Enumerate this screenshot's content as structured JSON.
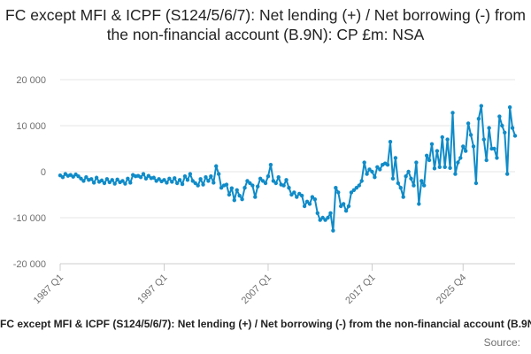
{
  "chart_data": {
    "type": "line",
    "title": "FC except MFI & ICPF (S124/5/6/7): Net lending (+) / Net borrowing (-) from the non-financial account (B.9N): CP £m: NSA",
    "xlabel": "",
    "ylabel": "",
    "ylim": [
      -20000,
      20000
    ],
    "yticks": [
      -20000,
      -10000,
      0,
      10000,
      20000
    ],
    "ytick_labels": [
      "-20 000",
      "-10 000",
      "0",
      "10 000",
      "20 000"
    ],
    "xticks": [
      "1987 Q1",
      "1997 Q1",
      "2007 Q1",
      "2017 Q1",
      "2025 Q4"
    ],
    "grid": true,
    "legend_placement": "bottom",
    "color": "#0f8bc8",
    "x_start": "1987 Q1",
    "x_end": "2025 Q4",
    "series": [
      {
        "name": "FC except MFI & ICPF (S124/5/6/7): Net lending (+) / Net borrowing (-) from the non-financial account (B.9N): CP £m: NSA",
        "values": [
          -800,
          -1200,
          -500,
          -900,
          -700,
          -1100,
          -600,
          -1000,
          -1500,
          -2000,
          -1200,
          -1800,
          -1600,
          -2400,
          -1300,
          -2200,
          -1900,
          -2500,
          -1600,
          -2300,
          -1800,
          -2600,
          -1700,
          -2300,
          -2000,
          -2600,
          -1500,
          -2400,
          -700,
          -1000,
          -900,
          -1200,
          -500,
          -1500,
          -900,
          -1400,
          -1300,
          -2000,
          -1600,
          -2100,
          -1800,
          -2400,
          -1500,
          -2200,
          -1400,
          -2500,
          -1800,
          -2700,
          -1000,
          -1800,
          -500,
          -2000,
          -2500,
          -3000,
          -1600,
          -2800,
          -1200,
          -2000,
          -1000,
          -2400,
          1200,
          -500,
          -3500,
          -3000,
          -2800,
          -5000,
          -3600,
          -6200,
          -4000,
          -5200,
          -6000,
          -3500,
          -2000,
          -2500,
          -3000,
          -5500,
          -3200,
          -1500,
          -2000,
          -2500,
          -1000,
          1500,
          -2000,
          -2500,
          -1200,
          -2800,
          -3000,
          -1800,
          -3500,
          -5000,
          -4500,
          -5500,
          -4800,
          -5200,
          -7500,
          -6500,
          -7000,
          -5500,
          -6000,
          -9000,
          -10500,
          -10000,
          -10500,
          -10000,
          -9000,
          -12800,
          -3500,
          -4500,
          -7500,
          -7000,
          -8500,
          -7500,
          -4500,
          -4000,
          -3500,
          -3000,
          -2000,
          2000,
          -500,
          500,
          0,
          -1200,
          1000,
          500,
          1500,
          1800,
          1500,
          6500,
          -1500,
          3000,
          -2500,
          -3500,
          -5500,
          -1000,
          0,
          -1500,
          -3000,
          2000,
          -7000,
          -2000,
          -3000,
          3500,
          2500,
          6000,
          700,
          4500,
          1000,
          7500,
          1000,
          7000,
          800,
          12800,
          -500,
          2000,
          3000,
          5500,
          4500,
          10500,
          8000,
          5500,
          -2500,
          11500,
          14300,
          7000,
          2500,
          9500,
          5000,
          5000,
          3000,
          12000,
          10000,
          8500,
          -500,
          14000,
          9500,
          7800
        ]
      }
    ],
    "source_label": "Source:"
  }
}
